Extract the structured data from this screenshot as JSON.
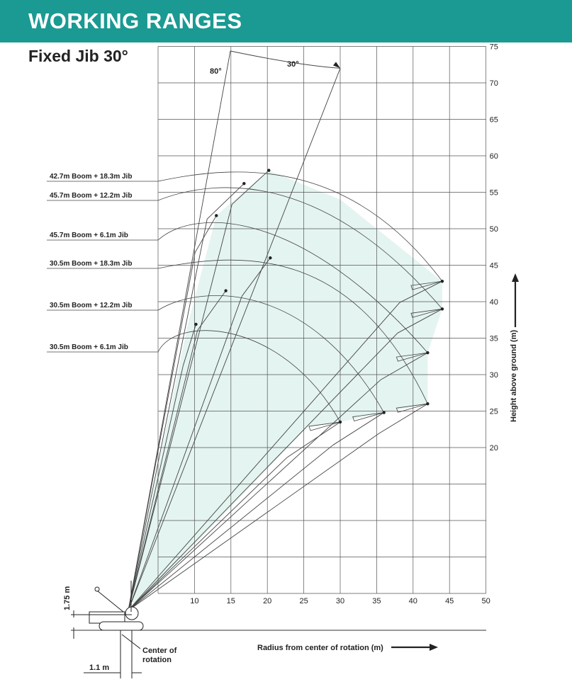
{
  "header": {
    "title": "WORKING RANGES",
    "color": "#1a9a92"
  },
  "subtitle": "Fixed Jib 30°",
  "angles": {
    "boom": "80°",
    "jib": "30°"
  },
  "axes": {
    "x_label": "Radius from center of rotation (m)",
    "y_label": "Height above ground (m)",
    "x_ticks": [
      10,
      15,
      20,
      25,
      30,
      35,
      40,
      45,
      50
    ],
    "y_ticks": [
      20,
      25,
      30,
      35,
      40,
      45,
      50,
      55,
      60,
      65,
      70,
      75
    ],
    "x_range": [
      0,
      45
    ],
    "y_range": [
      0,
      75
    ],
    "grid": true
  },
  "dimensions": {
    "pin_height": "1.75 m",
    "pin_offset": "1.1 m",
    "center_label": "Center of rotation"
  },
  "fill_color": "#e4f4f0",
  "chart_data": {
    "type": "line",
    "title": "Fixed Jib 30°",
    "xlabel": "Radius from center of rotation (m)",
    "ylabel": "Height above ground (m)",
    "xlim": [
      0,
      45
    ],
    "ylim": [
      0,
      75
    ],
    "series": [
      {
        "name": "42.7m  Boom + 18.3m Jib",
        "max_height": 58.0,
        "min_height_radius": 44.0,
        "min_height": 42.8,
        "radius_at_max": 20.2
      },
      {
        "name": "45.7m  Boom + 12.2m Jib",
        "max_height": 56.2,
        "min_height_radius": 44.0,
        "min_height": 39.0,
        "radius_at_max": 16.8
      },
      {
        "name": "45.7m  Boom + 6.1m Jib",
        "max_height": 51.8,
        "min_height_radius": 42.0,
        "min_height": 33.0,
        "radius_at_max": 13.0
      },
      {
        "name": "30.5m  Boom + 18.3m Jib",
        "max_height": 46.0,
        "min_height_radius": 42.0,
        "min_height": 26.0,
        "radius_at_max": 20.4
      },
      {
        "name": "30.5m  Boom + 12.2m Jib",
        "max_height": 41.5,
        "min_height_radius": 36.0,
        "min_height": 24.8,
        "radius_at_max": 14.3
      },
      {
        "name": "30.5m  Boom + 6.1m Jib",
        "max_height": 36.9,
        "min_height_radius": 30.0,
        "min_height": 23.5,
        "radius_at_max": 10.2
      }
    ]
  }
}
